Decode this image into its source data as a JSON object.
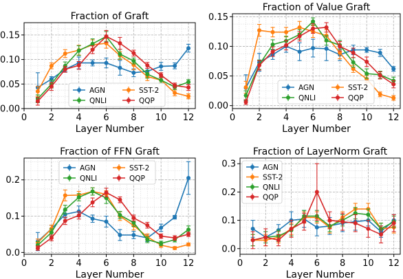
{
  "chart_data": [
    {
      "type": "line",
      "title": "Fraction of Graft",
      "xlabel": "Layer Number",
      "ylabel": "",
      "xlim": [
        0,
        12.5
      ],
      "ylim": [
        0,
        0.175
      ],
      "xticks": [
        0,
        2,
        4,
        6,
        8,
        10,
        12
      ],
      "yticks": [
        0.0,
        0.05,
        0.1,
        0.15
      ],
      "ytick_labels": [
        "0.00",
        "0.05",
        "0.10",
        "0.15"
      ],
      "grid": true,
      "legend_loc": "bottom-center",
      "legend_cols": 2,
      "x": [
        1,
        2,
        3,
        4,
        5,
        6,
        7,
        8,
        9,
        10,
        11,
        12
      ],
      "series": [
        {
          "name": "AGN",
          "color": "#1f77b4",
          "values": [
            0.043,
            0.06,
            0.08,
            0.093,
            0.093,
            0.093,
            0.083,
            0.073,
            0.076,
            0.086,
            0.087,
            0.123
          ],
          "errors": [
            0.03,
            0.005,
            0.005,
            0.012,
            0.006,
            0.01,
            0.015,
            0.008,
            0.006,
            0.008,
            0.006,
            0.008
          ]
        },
        {
          "name": "SST-2",
          "color": "#ff7f0e",
          "values": [
            0.035,
            0.087,
            0.112,
            0.119,
            0.13,
            0.133,
            0.108,
            0.089,
            0.065,
            0.058,
            0.032,
            0.025
          ],
          "errors": [
            0.01,
            0.006,
            0.008,
            0.01,
            0.01,
            0.01,
            0.008,
            0.01,
            0.008,
            0.006,
            0.006,
            0.005
          ]
        },
        {
          "name": "QNLI",
          "color": "#2ca02c",
          "values": [
            0.02,
            0.05,
            0.087,
            0.118,
            0.132,
            0.147,
            0.111,
            0.097,
            0.07,
            0.058,
            0.044,
            0.054
          ],
          "errors": [
            0.008,
            0.008,
            0.008,
            0.01,
            0.01,
            0.01,
            0.01,
            0.006,
            0.008,
            0.006,
            0.005,
            0.005
          ]
        },
        {
          "name": "QQP",
          "color": "#d62728",
          "values": [
            0.015,
            0.045,
            0.08,
            0.088,
            0.12,
            0.147,
            0.133,
            0.113,
            0.088,
            0.068,
            0.047,
            0.043
          ],
          "errors": [
            0.008,
            0.008,
            0.006,
            0.008,
            0.008,
            0.012,
            0.012,
            0.006,
            0.006,
            0.005,
            0.005,
            0.006
          ]
        }
      ]
    },
    {
      "type": "line",
      "title": "Fraction of Value Graft",
      "xlabel": "Layer Number",
      "ylabel": "",
      "xlim": [
        0,
        12.5
      ],
      "ylim": [
        -0.005,
        0.155
      ],
      "xticks": [
        0,
        2,
        4,
        6,
        8,
        10,
        12
      ],
      "yticks": [
        0.0,
        0.05,
        0.1,
        0.15
      ],
      "ytick_labels": [
        "0.00",
        "0.05",
        "0.10",
        "0.15"
      ],
      "grid": true,
      "legend_loc": "bottom-center",
      "legend_cols": 2,
      "x": [
        1,
        2,
        3,
        4,
        5,
        6,
        7,
        8,
        9,
        10,
        11,
        12
      ],
      "series": [
        {
          "name": "AGN",
          "color": "#1f77b4",
          "values": [
            0.03,
            0.073,
            0.086,
            0.1,
            0.091,
            0.097,
            0.096,
            0.086,
            0.094,
            0.094,
            0.089,
            0.062
          ],
          "errors": [
            0.022,
            0.015,
            0.008,
            0.01,
            0.015,
            0.015,
            0.02,
            0.01,
            0.008,
            0.004,
            0.006,
            0.004
          ]
        },
        {
          "name": "SST-2",
          "color": "#ff7f0e",
          "values": [
            0.031,
            0.127,
            0.124,
            0.124,
            0.132,
            0.125,
            0.118,
            0.089,
            0.062,
            0.045,
            0.019,
            0.013
          ],
          "errors": [
            0.01,
            0.01,
            0.008,
            0.008,
            0.01,
            0.01,
            0.01,
            0.01,
            0.006,
            0.006,
            0.004,
            0.004
          ]
        },
        {
          "name": "QNLI",
          "color": "#2ca02c",
          "values": [
            0.017,
            0.069,
            0.103,
            0.109,
            0.12,
            0.142,
            0.11,
            0.102,
            0.073,
            0.054,
            0.052,
            0.042
          ],
          "errors": [
            0.008,
            0.008,
            0.008,
            0.008,
            0.008,
            0.006,
            0.008,
            0.008,
            0.008,
            0.008,
            0.006,
            0.006
          ]
        },
        {
          "name": "QQP",
          "color": "#d62728",
          "values": [
            0.006,
            0.068,
            0.091,
            0.102,
            0.117,
            0.13,
            0.132,
            0.1,
            0.089,
            0.074,
            0.051,
            0.036
          ],
          "errors": [
            0.004,
            0.008,
            0.008,
            0.008,
            0.008,
            0.008,
            0.008,
            0.008,
            0.008,
            0.008,
            0.006,
            0.006
          ]
        }
      ]
    },
    {
      "type": "line",
      "title": "Fraction of FFN Graft",
      "xlabel": "Layer Number",
      "ylabel": "",
      "xlim": [
        0,
        12.5
      ],
      "ylim": [
        -0.005,
        0.26
      ],
      "xticks": [
        0,
        2,
        4,
        6,
        8,
        10,
        12
      ],
      "yticks": [
        0.0,
        0.1,
        0.2
      ],
      "ytick_labels": [
        "0.0",
        "0.1",
        "0.2"
      ],
      "grid": true,
      "legend_loc": "top-center",
      "legend_cols": 2,
      "x": [
        1,
        2,
        3,
        4,
        5,
        6,
        7,
        8,
        9,
        10,
        11,
        12
      ],
      "series": [
        {
          "name": "AGN",
          "color": "#1f77b4",
          "values": [
            0.03,
            0.065,
            0.105,
            0.113,
            0.093,
            0.085,
            0.048,
            0.048,
            0.04,
            0.068,
            0.097,
            0.205
          ],
          "errors": [
            0.025,
            0.01,
            0.01,
            0.015,
            0.01,
            0.015,
            0.015,
            0.01,
            0.01,
            0.01,
            0.005,
            0.045
          ]
        },
        {
          "name": "SST-2",
          "color": "#ff7f0e",
          "values": [
            0.027,
            0.065,
            0.157,
            0.158,
            0.168,
            0.16,
            0.1,
            0.074,
            0.043,
            0.02,
            0.012,
            0.022
          ],
          "errors": [
            0.01,
            0.01,
            0.015,
            0.01,
            0.01,
            0.01,
            0.012,
            0.012,
            0.008,
            0.006,
            0.004,
            0.004
          ]
        },
        {
          "name": "QNLI",
          "color": "#2ca02c",
          "values": [
            0.02,
            0.055,
            0.118,
            0.152,
            0.168,
            0.15,
            0.103,
            0.082,
            0.035,
            0.025,
            0.035,
            0.063
          ],
          "errors": [
            0.01,
            0.01,
            0.012,
            0.01,
            0.01,
            0.015,
            0.01,
            0.01,
            0.008,
            0.006,
            0.006,
            0.01
          ]
        },
        {
          "name": "QQP",
          "color": "#d62728",
          "values": [
            0.012,
            0.04,
            0.087,
            0.102,
            0.138,
            0.165,
            0.145,
            0.095,
            0.075,
            0.045,
            0.04,
            0.05
          ],
          "errors": [
            0.006,
            0.008,
            0.01,
            0.01,
            0.012,
            0.012,
            0.008,
            0.008,
            0.008,
            0.006,
            0.006,
            0.006
          ]
        }
      ]
    },
    {
      "type": "line",
      "title": "Fraction of LayerNorm Graft",
      "xlabel": "Layer Number",
      "ylabel": "",
      "xlim": [
        0,
        12.5
      ],
      "ylim": [
        -0.02,
        0.32
      ],
      "xticks": [
        0,
        2,
        4,
        6,
        8,
        10,
        12
      ],
      "yticks": [
        0.0,
        0.1,
        0.2,
        0.3
      ],
      "ytick_labels": [
        "0.0",
        "0.1",
        "0.2",
        "0.3"
      ],
      "grid": true,
      "legend_loc": "top-left",
      "legend_cols": 1,
      "x": [
        1,
        2,
        3,
        4,
        5,
        6,
        7,
        8,
        9,
        10,
        11,
        12
      ],
      "series": [
        {
          "name": "AGN",
          "color": "#1f77b4",
          "values": [
            0.07,
            0.04,
            0.065,
            0.1,
            0.105,
            0.075,
            0.08,
            0.09,
            0.095,
            0.1,
            0.06,
            0.1
          ],
          "errors": [
            0.03,
            0.02,
            0.02,
            0.03,
            0.03,
            0.03,
            0.03,
            0.03,
            0.03,
            0.02,
            0.02,
            0.02
          ]
        },
        {
          "name": "SST-2",
          "color": "#ff7f0e",
          "values": [
            0.03,
            0.03,
            0.04,
            0.07,
            0.11,
            0.11,
            0.075,
            0.11,
            0.14,
            0.14,
            0.07,
            0.075
          ],
          "errors": [
            0.02,
            0.02,
            0.02,
            0.02,
            0.02,
            0.02,
            0.02,
            0.02,
            0.02,
            0.02,
            0.02,
            0.02
          ]
        },
        {
          "name": "QNLI",
          "color": "#2ca02c",
          "values": [
            0.03,
            0.04,
            0.045,
            0.065,
            0.115,
            0.115,
            0.08,
            0.1,
            0.125,
            0.12,
            0.07,
            0.095
          ],
          "errors": [
            0.02,
            0.02,
            0.02,
            0.02,
            0.02,
            0.02,
            0.02,
            0.02,
            0.02,
            0.02,
            0.02,
            0.02
          ]
        },
        {
          "name": "QQP",
          "color": "#d62728",
          "values": [
            0.03,
            0.04,
            0.03,
            0.07,
            0.095,
            0.2,
            0.1,
            0.095,
            0.09,
            0.07,
            0.05,
            0.09
          ],
          "errors": [
            0.03,
            0.03,
            0.02,
            0.03,
            0.03,
            0.1,
            0.03,
            0.03,
            0.03,
            0.03,
            0.03,
            0.03
          ]
        }
      ]
    }
  ]
}
